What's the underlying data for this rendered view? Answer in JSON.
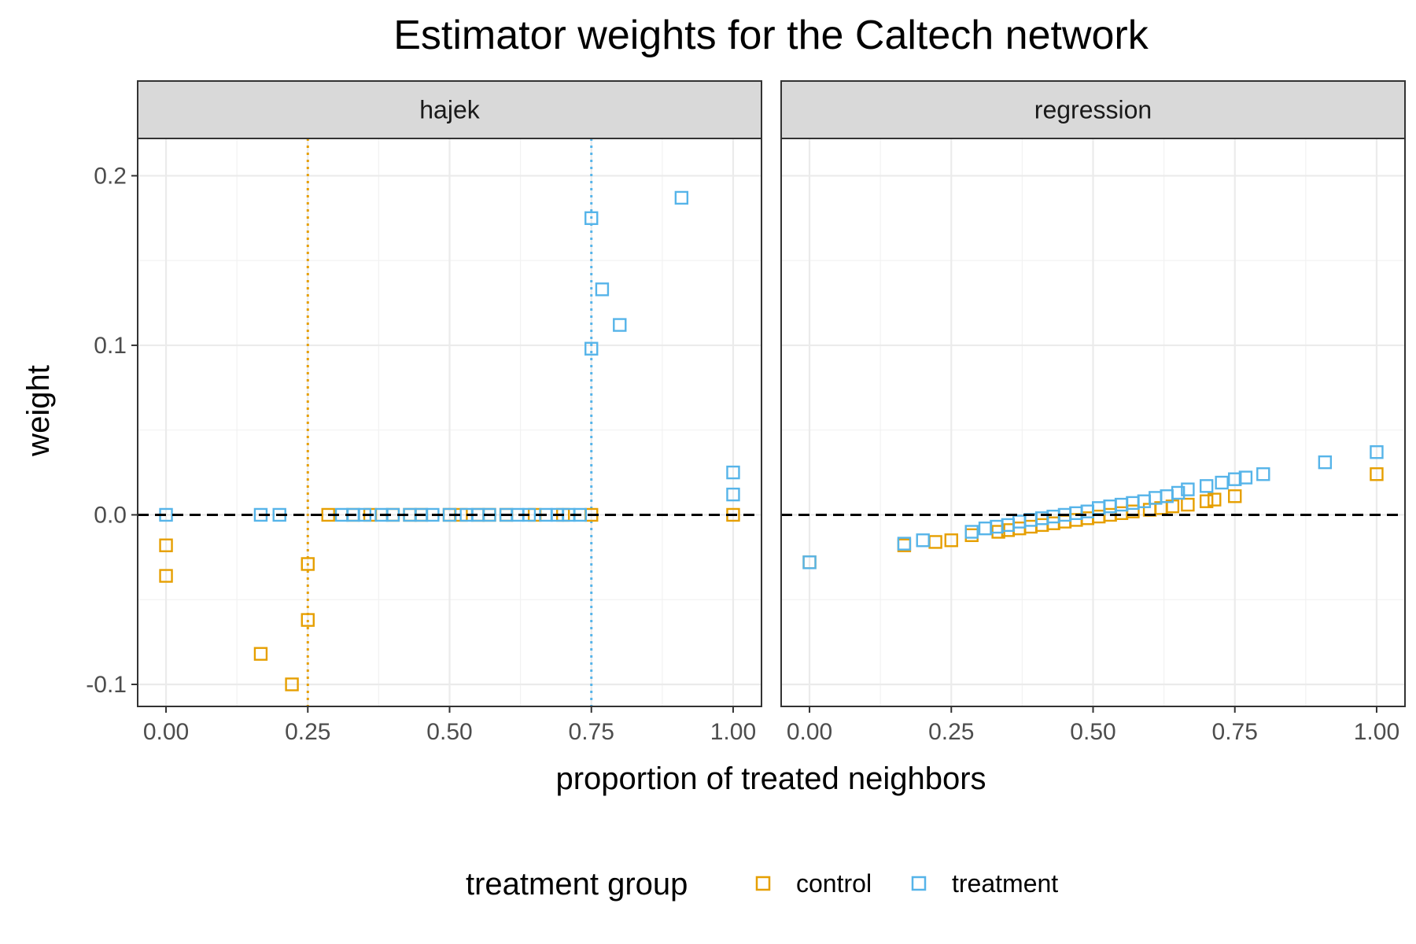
{
  "chart_data": {
    "type": "scatter",
    "title": "Estimator weights for the Caltech network",
    "xlabel": "proportion of treated neighbors",
    "ylabel": "weight",
    "xlim": [
      -0.05,
      1.05
    ],
    "ylim": [
      -0.113,
      0.222
    ],
    "x_ticks": [
      "0.00",
      "0.25",
      "0.50",
      "0.75",
      "1.00"
    ],
    "x_tick_values": [
      0,
      0.25,
      0.5,
      0.75,
      1.0
    ],
    "y_ticks": [
      "-0.1",
      "0.0",
      "0.1",
      "0.2"
    ],
    "y_tick_values": [
      -0.1,
      0,
      0.1,
      0.2
    ],
    "grid": true,
    "legend": {
      "title": "treatment group",
      "position": "bottom",
      "entries": [
        "control",
        "treatment"
      ]
    },
    "colors": {
      "control": "#E69F00",
      "treatment": "#56B4E9"
    },
    "hline": {
      "y": 0,
      "style": "dashed",
      "color": "#000000"
    },
    "facets": [
      {
        "label": "hajek",
        "vlines": [
          {
            "x": 0.25,
            "series": "control",
            "style": "dotted"
          },
          {
            "x": 0.75,
            "series": "treatment",
            "style": "dotted"
          }
        ],
        "series": [
          {
            "name": "control",
            "points": [
              [
                0,
                -0.018
              ],
              [
                0,
                -0.036
              ],
              [
                0.167,
                -0.082
              ],
              [
                0.222,
                -0.1
              ],
              [
                0.25,
                -0.029
              ],
              [
                0.25,
                -0.062
              ],
              [
                0.286,
                0
              ],
              [
                0.33,
                0
              ],
              [
                0.36,
                0
              ],
              [
                0.4,
                0
              ],
              [
                0.43,
                0
              ],
              [
                0.45,
                0
              ],
              [
                0.5,
                0
              ],
              [
                0.52,
                0
              ],
              [
                0.55,
                0
              ],
              [
                0.57,
                0
              ],
              [
                0.6,
                0
              ],
              [
                0.65,
                0
              ],
              [
                0.7,
                0
              ],
              [
                0.75,
                0
              ],
              [
                1.0,
                0
              ]
            ]
          },
          {
            "name": "treatment",
            "points": [
              [
                0,
                0
              ],
              [
                0.167,
                0
              ],
              [
                0.2,
                0
              ],
              [
                0.31,
                0
              ],
              [
                0.33,
                0
              ],
              [
                0.35,
                0
              ],
              [
                0.38,
                0
              ],
              [
                0.4,
                0
              ],
              [
                0.43,
                0
              ],
              [
                0.45,
                0
              ],
              [
                0.47,
                0
              ],
              [
                0.5,
                0
              ],
              [
                0.53,
                0
              ],
              [
                0.55,
                0
              ],
              [
                0.57,
                0
              ],
              [
                0.6,
                0
              ],
              [
                0.62,
                0
              ],
              [
                0.64,
                0
              ],
              [
                0.67,
                0
              ],
              [
                0.69,
                0
              ],
              [
                0.71,
                0
              ],
              [
                0.73,
                0
              ],
              [
                0.75,
                0.175
              ],
              [
                0.75,
                0.098
              ],
              [
                0.769,
                0.133
              ],
              [
                0.8,
                0.112
              ],
              [
                0.909,
                0.187
              ],
              [
                1.0,
                0.025
              ],
              [
                1.0,
                0.012
              ]
            ]
          }
        ]
      },
      {
        "label": "regression",
        "vlines": [],
        "series": [
          {
            "name": "control",
            "points": [
              [
                0,
                -0.028
              ],
              [
                0.167,
                -0.018
              ],
              [
                0.222,
                -0.016
              ],
              [
                0.25,
                -0.015
              ],
              [
                0.286,
                -0.012
              ],
              [
                0.333,
                -0.01
              ],
              [
                0.35,
                -0.009
              ],
              [
                0.37,
                -0.008
              ],
              [
                0.39,
                -0.007
              ],
              [
                0.41,
                -0.006
              ],
              [
                0.43,
                -0.005
              ],
              [
                0.45,
                -0.004
              ],
              [
                0.47,
                -0.003
              ],
              [
                0.49,
                -0.002
              ],
              [
                0.51,
                -0.001
              ],
              [
                0.53,
                0
              ],
              [
                0.55,
                0.001
              ],
              [
                0.57,
                0.002
              ],
              [
                0.6,
                0.003
              ],
              [
                0.62,
                0.004
              ],
              [
                0.64,
                0.005
              ],
              [
                0.667,
                0.006
              ],
              [
                0.7,
                0.008
              ],
              [
                0.714,
                0.009
              ],
              [
                0.75,
                0.011
              ],
              [
                1.0,
                0.024
              ]
            ]
          },
          {
            "name": "treatment",
            "points": [
              [
                0,
                -0.028
              ],
              [
                0.167,
                -0.017
              ],
              [
                0.2,
                -0.015
              ],
              [
                0.286,
                -0.01
              ],
              [
                0.31,
                -0.008
              ],
              [
                0.33,
                -0.007
              ],
              [
                0.35,
                -0.006
              ],
              [
                0.37,
                -0.004
              ],
              [
                0.39,
                -0.003
              ],
              [
                0.41,
                -0.002
              ],
              [
                0.43,
                -0.001
              ],
              [
                0.45,
                0
              ],
              [
                0.47,
                0.001
              ],
              [
                0.49,
                0.002
              ],
              [
                0.51,
                0.004
              ],
              [
                0.53,
                0.005
              ],
              [
                0.55,
                0.006
              ],
              [
                0.57,
                0.007
              ],
              [
                0.59,
                0.008
              ],
              [
                0.61,
                0.01
              ],
              [
                0.63,
                0.011
              ],
              [
                0.65,
                0.013
              ],
              [
                0.667,
                0.015
              ],
              [
                0.7,
                0.017
              ],
              [
                0.727,
                0.019
              ],
              [
                0.75,
                0.021
              ],
              [
                0.769,
                0.022
              ],
              [
                0.8,
                0.024
              ],
              [
                0.909,
                0.031
              ],
              [
                1.0,
                0.037
              ]
            ]
          }
        ]
      }
    ]
  }
}
